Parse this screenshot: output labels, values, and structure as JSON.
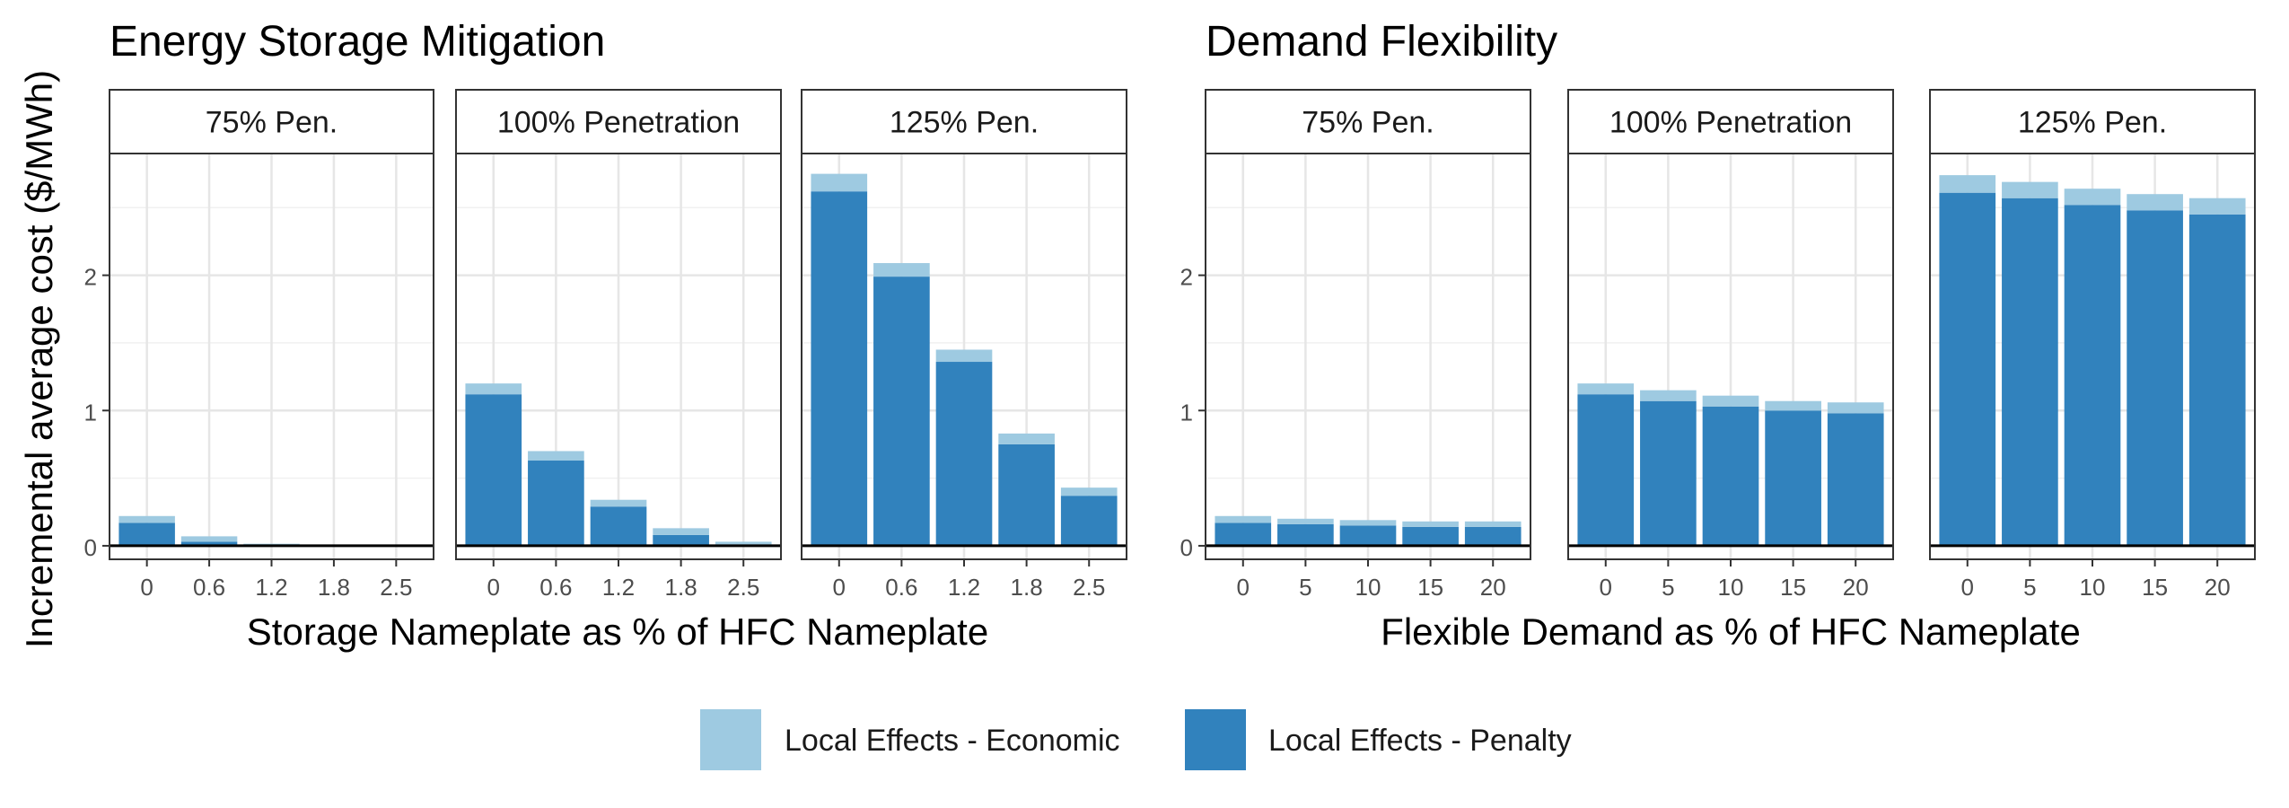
{
  "ylabel": "Incremental average cost ($/MWh)",
  "legend": {
    "items": [
      {
        "label": "Local Effects - Economic",
        "color": "#9ecae1"
      },
      {
        "label": "Local Effects - Penalty",
        "color": "#3182bd"
      }
    ],
    "placement": "bottom"
  },
  "chart_data": [
    {
      "type": "bar",
      "stacked": true,
      "title": "Energy Storage Mitigation",
      "xlabel": "Storage Nameplate as % of HFC Nameplate",
      "ylabel": "Incremental average cost ($/MWh)",
      "ylim": [
        -0.1,
        2.9
      ],
      "yticks": [
        0,
        1,
        2
      ],
      "grid": true,
      "categories": [
        "0",
        "0.6",
        "1.2",
        "1.8",
        "2.5"
      ],
      "panels": [
        {
          "label": "75% Pen.",
          "series": [
            {
              "name": "Local Effects - Penalty",
              "values": [
                0.17,
                0.03,
                0.005,
                0,
                0
              ]
            },
            {
              "name": "Local Effects - Economic",
              "values": [
                0.05,
                0.04,
                0.01,
                0.005,
                0
              ]
            }
          ]
        },
        {
          "label": "100% Penetration",
          "series": [
            {
              "name": "Local Effects - Penalty",
              "values": [
                1.12,
                0.63,
                0.29,
                0.08,
                0.01
              ]
            },
            {
              "name": "Local Effects - Economic",
              "values": [
                0.08,
                0.07,
                0.05,
                0.05,
                0.02
              ]
            }
          ]
        },
        {
          "label": "125% Pen.",
          "series": [
            {
              "name": "Local Effects - Penalty",
              "values": [
                2.62,
                1.99,
                1.36,
                0.75,
                0.37
              ]
            },
            {
              "name": "Local Effects - Economic",
              "values": [
                0.13,
                0.1,
                0.09,
                0.08,
                0.06
              ]
            }
          ]
        }
      ]
    },
    {
      "type": "bar",
      "stacked": true,
      "title": "Demand Flexibility",
      "xlabel": "Flexible Demand as % of HFC Nameplate",
      "ylabel": "Incremental average cost ($/MWh)",
      "ylim": [
        -0.1,
        2.9
      ],
      "yticks": [
        0,
        1,
        2
      ],
      "grid": true,
      "categories": [
        "0",
        "5",
        "10",
        "15",
        "20"
      ],
      "panels": [
        {
          "label": "75% Pen.",
          "series": [
            {
              "name": "Local Effects - Penalty",
              "values": [
                0.17,
                0.16,
                0.15,
                0.14,
                0.14
              ]
            },
            {
              "name": "Local Effects - Economic",
              "values": [
                0.05,
                0.04,
                0.04,
                0.04,
                0.04
              ]
            }
          ]
        },
        {
          "label": "100% Penetration",
          "series": [
            {
              "name": "Local Effects - Penalty",
              "values": [
                1.12,
                1.07,
                1.03,
                1.0,
                0.98
              ]
            },
            {
              "name": "Local Effects - Economic",
              "values": [
                0.08,
                0.08,
                0.08,
                0.07,
                0.08
              ]
            }
          ]
        },
        {
          "label": "125% Pen.",
          "series": [
            {
              "name": "Local Effects - Penalty",
              "values": [
                2.61,
                2.57,
                2.52,
                2.48,
                2.45
              ]
            },
            {
              "name": "Local Effects - Economic",
              "values": [
                0.13,
                0.12,
                0.12,
                0.12,
                0.12
              ]
            }
          ]
        }
      ]
    }
  ]
}
